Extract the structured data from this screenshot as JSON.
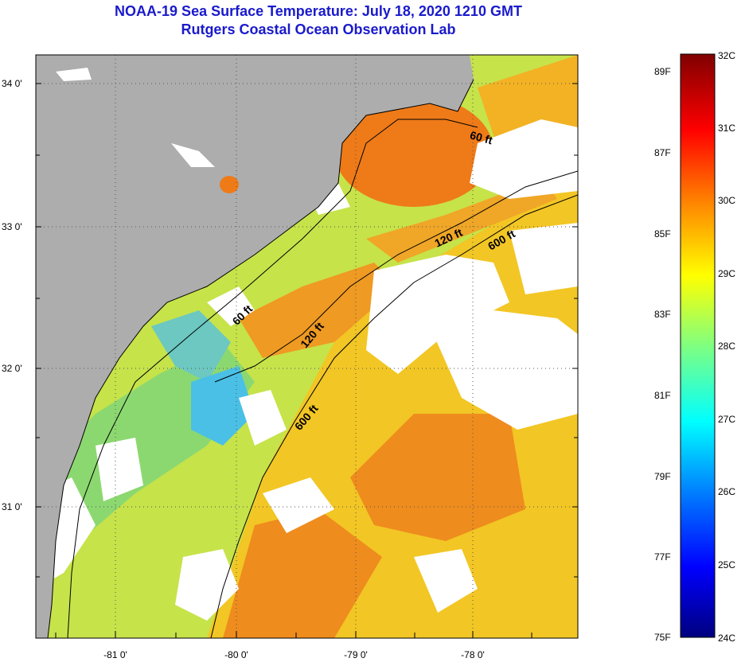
{
  "title": {
    "line1": "NOAA-19 Sea Surface Temperature:  July 18, 2020 1210 GMT",
    "line2": "Rutgers Coastal Ocean Observation Lab"
  },
  "map": {
    "latitude_ticks": [
      "34 0'",
      "33 0'",
      "32 0'",
      "31 0'"
    ],
    "longitude_ticks": [
      "-81 0'",
      "-80 0'",
      "-79 0'",
      "-78 0'"
    ],
    "contours": [
      {
        "label": "60 ft"
      },
      {
        "label": "120 ft"
      },
      {
        "label": "600 ft"
      },
      {
        "label": "60 ft"
      },
      {
        "label": "120 ft"
      },
      {
        "label": "600 ft"
      }
    ],
    "colors": {
      "land": "#adadad",
      "cloud": "#ffffff",
      "warm": "#f07a1a",
      "mid": "#f4d01c",
      "cool": "#9ee04a",
      "cold": "#3ac0f0"
    }
  },
  "colorbar": {
    "fahrenheit_labels": [
      "89F",
      "87F",
      "85F",
      "83F",
      "81F",
      "79F",
      "77F",
      "75F"
    ],
    "celsius_labels": [
      "32C",
      "31C",
      "30C",
      "29C",
      "28C",
      "27C",
      "26C",
      "25C",
      "24C"
    ],
    "range_c": [
      24,
      32
    ]
  }
}
